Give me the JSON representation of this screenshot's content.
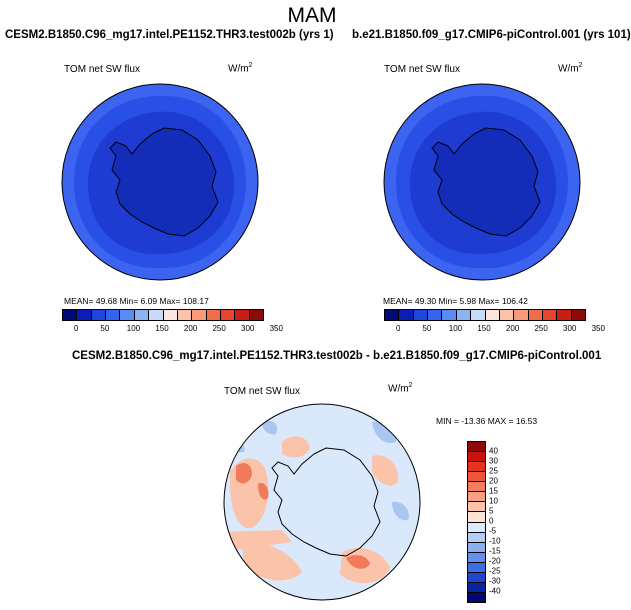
{
  "main_title": "MAM",
  "panels": [
    {
      "title": "CESM2.B1850.C96_mg17.intel.PE1152.THR3.test002b (yrs 1)",
      "var_label": "TOM net SW flux",
      "units_base": "W/m",
      "units_exp": "2",
      "stats": "MEAN=  49.68  Min=    6.09  Max= 108.17"
    },
    {
      "title": "b.e21.B1850.f09_g17.CMIP6-piControl.001 (yrs 101)",
      "var_label": "TOM net SW flux",
      "units_base": "W/m",
      "units_exp": "2",
      "stats": "MEAN=  49.30  Min=    5.98  Max= 106.42"
    }
  ],
  "diff_panel": {
    "title": "CESM2.B1850.C96_mg17.intel.PE1152.THR3.test002b - b.e21.B1850.f09_g17.CMIP6-piControl.001",
    "var_label": "TOM net SW flux",
    "units_base": "W/m",
    "units_exp": "2",
    "stats": "MIN = -13.36  MAX =  16.53"
  },
  "colorbar_abs": {
    "ticks": [
      "0",
      "50",
      "100",
      "150",
      "200",
      "250",
      "300",
      "350"
    ],
    "colors": [
      "#000a78",
      "#0a1eb4",
      "#1e46dc",
      "#3264f0",
      "#5a8cf5",
      "#8cb4f5",
      "#c8dcfa",
      "#fae6dc",
      "#fac3aa",
      "#fa9b78",
      "#f06e4b",
      "#e6462d",
      "#c81e14",
      "#8c0a0a"
    ]
  },
  "colorbar_diff": {
    "ticks": [
      "40",
      "30",
      "25",
      "20",
      "15",
      "10",
      "5",
      "0",
      "-5",
      "-10",
      "-15",
      "-20",
      "-25",
      "-30",
      "-40"
    ],
    "colors": [
      "#8c0a0a",
      "#c8140f",
      "#e6321e",
      "#f0553c",
      "#f57d5f",
      "#f7a082",
      "#fac3aa",
      "#fde3d5",
      "#dce9fa",
      "#b4cdf5",
      "#8caff0",
      "#6491eb",
      "#3c6ee6",
      "#1e46d2",
      "#0a23a0",
      "#000a6e"
    ]
  },
  "colors": {
    "ocean_outer": "#3c64f0",
    "ocean_mid": "#2850e6",
    "ice_zone": "#1e3cd2",
    "continent": "#142db9",
    "diff_base": "#d9e9fb",
    "diff_pos": "#fac3aa",
    "diff_pos_strong": "#f07a5a",
    "diff_neg": "#a9c5f2"
  }
}
